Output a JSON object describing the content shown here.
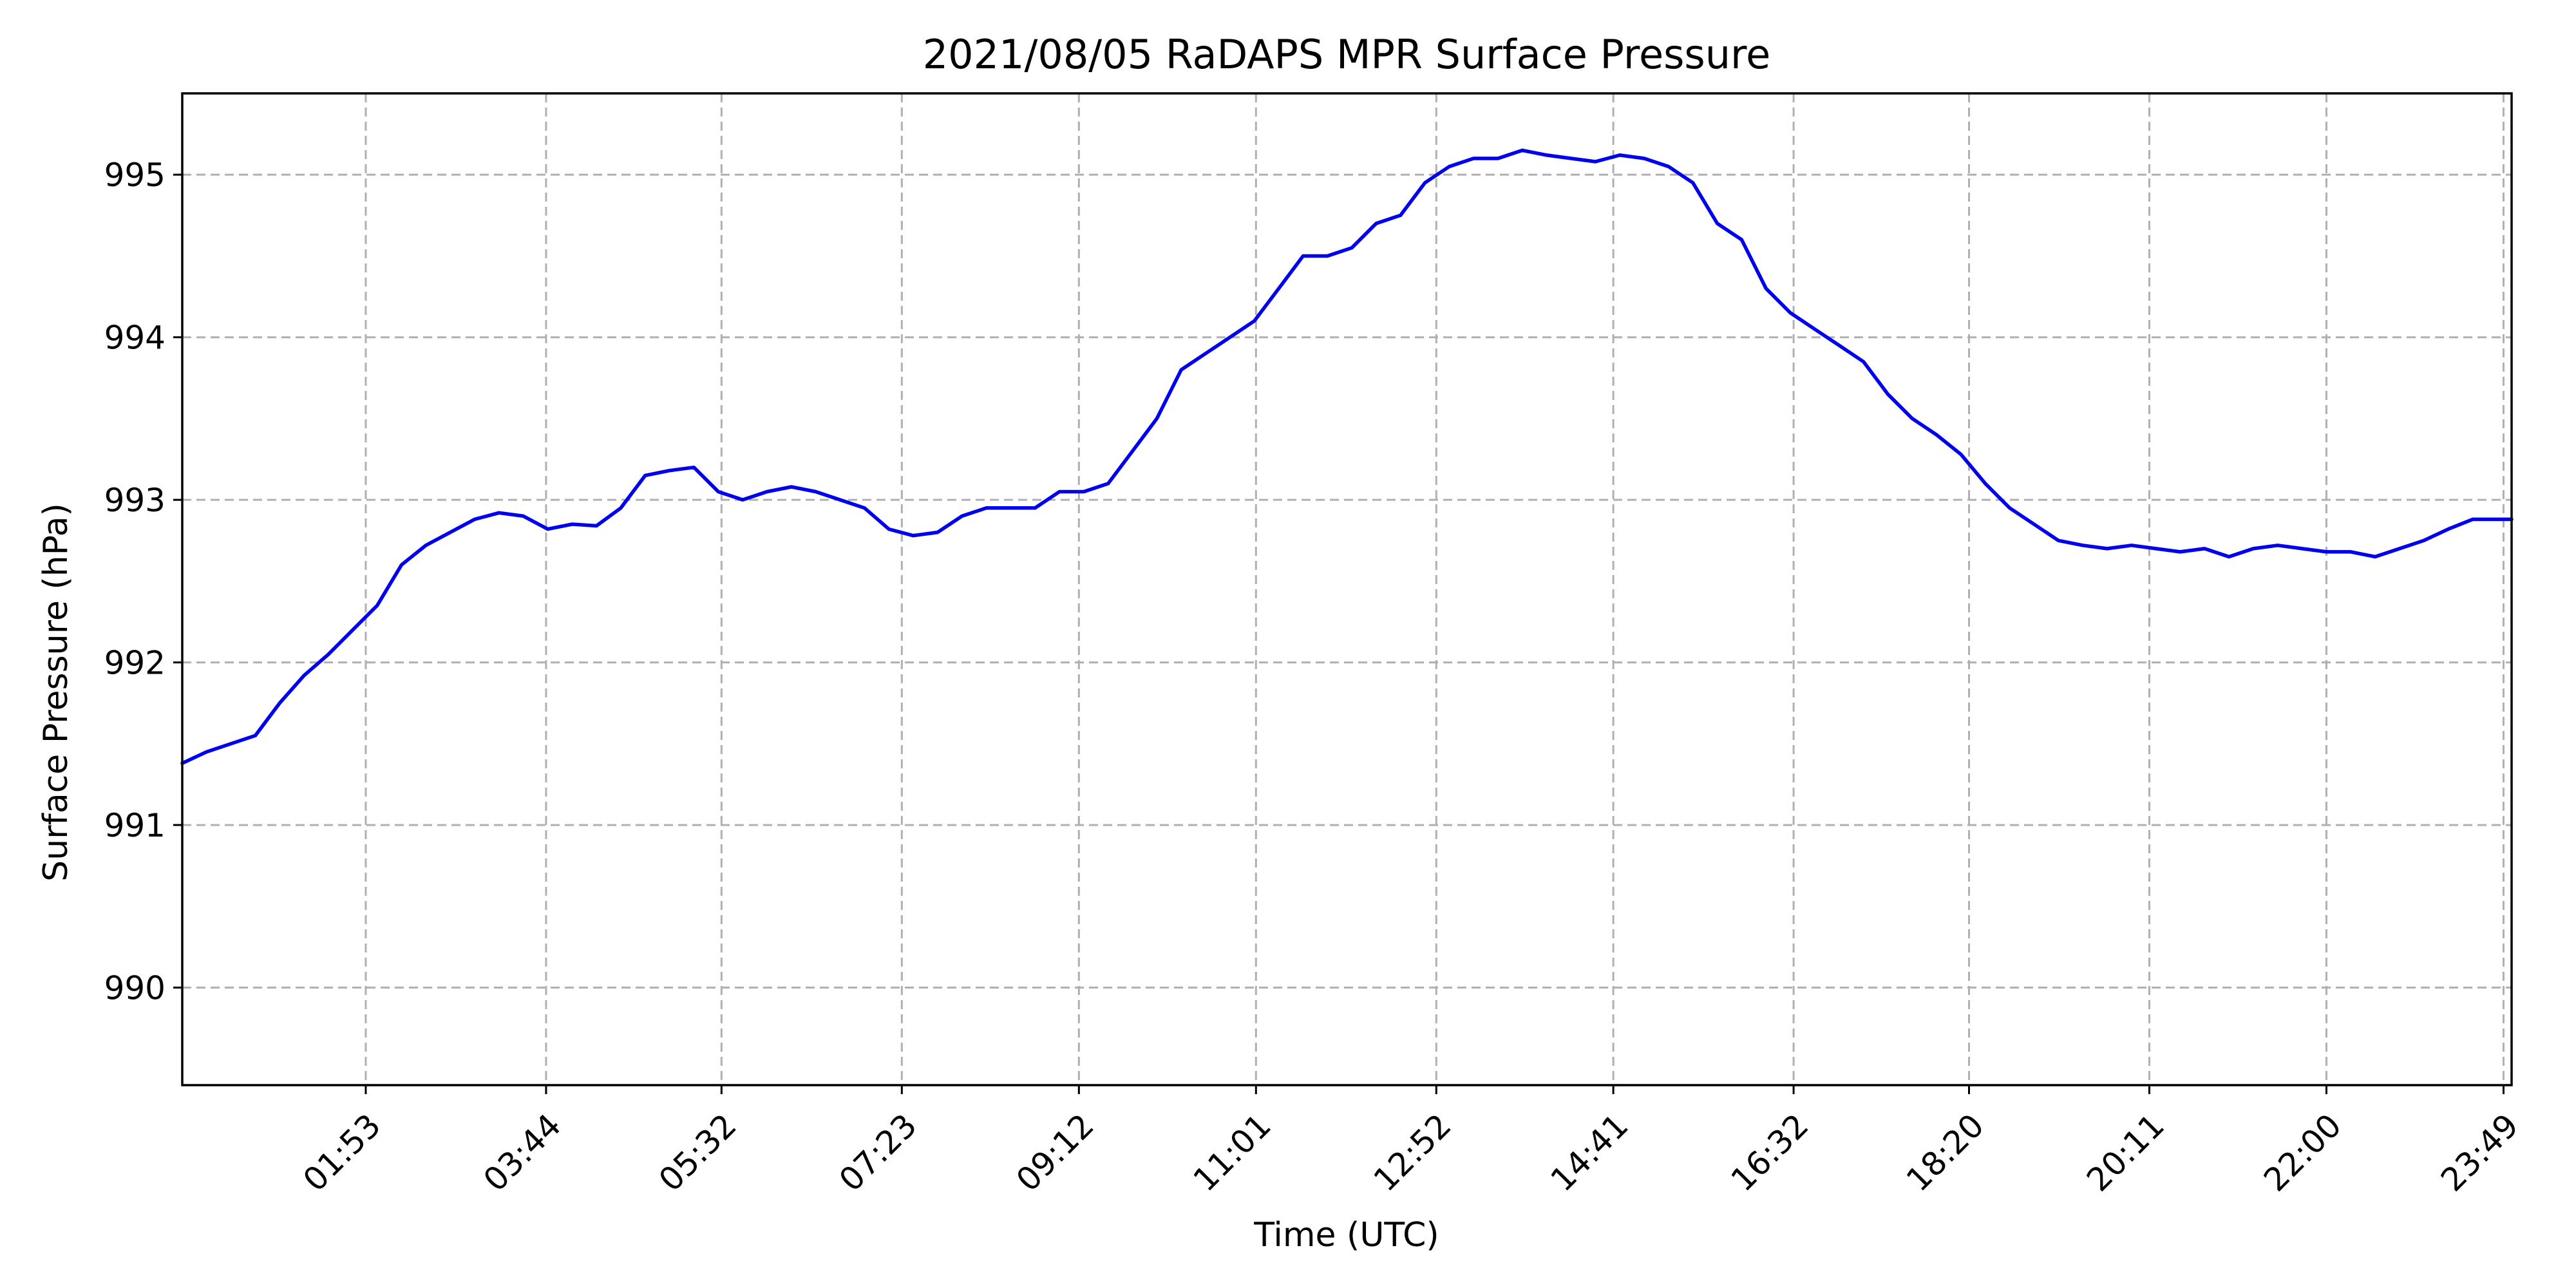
{
  "chart_data": {
    "type": "line",
    "title": "2021/08/05 RaDAPS MPR Surface Pressure",
    "xlabel": "Time (UTC)",
    "ylabel": "Surface Pressure (hPa)",
    "xlim_hours": [
      0.0,
      23.9
    ],
    "ylim": [
      989.4,
      995.5
    ],
    "grid": true,
    "xticks": [
      {
        "label": "01:53",
        "hours": 1.883
      },
      {
        "label": "03:44",
        "hours": 3.733
      },
      {
        "label": "05:32",
        "hours": 5.533
      },
      {
        "label": "07:23",
        "hours": 7.383
      },
      {
        "label": "09:12",
        "hours": 9.2
      },
      {
        "label": "11:01",
        "hours": 11.017
      },
      {
        "label": "12:52",
        "hours": 12.867
      },
      {
        "label": "14:41",
        "hours": 14.683
      },
      {
        "label": "16:32",
        "hours": 16.533
      },
      {
        "label": "18:20",
        "hours": 18.333
      },
      {
        "label": "20:11",
        "hours": 20.183
      },
      {
        "label": "22:00",
        "hours": 22.0
      },
      {
        "label": "23:49",
        "hours": 23.817
      }
    ],
    "yticks": [
      990,
      991,
      992,
      993,
      994,
      995
    ],
    "series": [
      {
        "color": "#0000ee",
        "x_hours": [
          0.0,
          0.25,
          0.5,
          0.75,
          1.0,
          1.25,
          1.5,
          1.75,
          2.0,
          2.25,
          2.5,
          2.75,
          3.0,
          3.25,
          3.5,
          3.75,
          4.0,
          4.25,
          4.5,
          4.75,
          5.0,
          5.25,
          5.5,
          5.75,
          6.0,
          6.25,
          6.5,
          6.75,
          7.0,
          7.25,
          7.5,
          7.75,
          8.0,
          8.25,
          8.5,
          8.75,
          9.0,
          9.25,
          9.5,
          9.75,
          10.0,
          10.25,
          10.5,
          10.75,
          11.0,
          11.25,
          11.5,
          11.75,
          12.0,
          12.25,
          12.5,
          12.75,
          13.0,
          13.25,
          13.5,
          13.75,
          14.0,
          14.25,
          14.5,
          14.75,
          15.0,
          15.25,
          15.5,
          15.75,
          16.0,
          16.25,
          16.5,
          16.75,
          17.0,
          17.25,
          17.5,
          17.75,
          18.0,
          18.25,
          18.5,
          18.75,
          19.0,
          19.25,
          19.5,
          19.75,
          20.0,
          20.25,
          20.5,
          20.75,
          21.0,
          21.25,
          21.5,
          21.75,
          22.0,
          22.25,
          22.5,
          22.75,
          23.0,
          23.25,
          23.5,
          23.75,
          23.9
        ],
        "values": [
          991.38,
          991.45,
          991.5,
          991.55,
          991.75,
          991.92,
          992.05,
          992.2,
          992.35,
          992.6,
          992.72,
          992.8,
          992.88,
          992.92,
          992.9,
          992.82,
          992.85,
          992.84,
          992.95,
          993.15,
          993.18,
          993.2,
          993.05,
          993.0,
          993.05,
          993.08,
          993.05,
          993.0,
          992.95,
          992.82,
          992.78,
          992.8,
          992.9,
          992.95,
          992.95,
          992.95,
          993.05,
          993.05,
          993.1,
          993.3,
          993.5,
          993.8,
          993.9,
          994.0,
          994.1,
          994.3,
          994.5,
          994.5,
          994.55,
          994.7,
          994.75,
          994.95,
          995.05,
          995.1,
          995.1,
          995.15,
          995.12,
          995.1,
          995.08,
          995.12,
          995.1,
          995.05,
          994.95,
          994.7,
          994.6,
          994.3,
          994.15,
          994.05,
          993.95,
          993.85,
          993.65,
          993.5,
          993.4,
          993.28,
          993.1,
          992.95,
          992.85,
          992.75,
          992.72,
          992.7,
          992.72,
          992.7,
          992.68,
          992.7,
          992.65,
          992.7,
          992.72,
          992.7,
          992.68,
          992.68,
          992.65,
          992.7,
          992.75,
          992.82,
          992.88,
          992.88,
          992.88
        ]
      }
    ]
  }
}
